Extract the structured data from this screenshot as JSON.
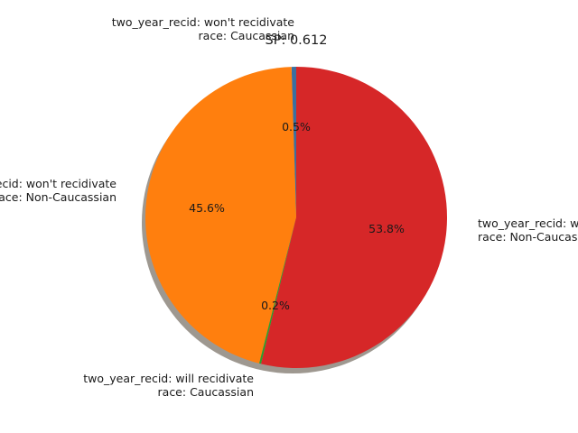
{
  "chart_data": {
    "type": "pie",
    "title": "SP: 0.612",
    "slices": [
      {
        "label_lines": [
          "two_year_recid: won't recidivate",
          "race: Caucassian"
        ],
        "value": 0.5,
        "pct_label": "0.5%",
        "color": "#3b6fa0"
      },
      {
        "label_lines": [
          "two_year_recid: won't recidivate",
          "race: Non-Caucassian"
        ],
        "value": 45.6,
        "pct_label": "45.6%",
        "color": "#ff7f0e"
      },
      {
        "label_lines": [
          "two_year_recid: will recidivate",
          "race: Caucassian"
        ],
        "value": 0.2,
        "pct_label": "0.2%",
        "color": "#2ca02c"
      },
      {
        "label_lines": [
          "two_year_recid: will recidivate",
          "race: Non-Caucassian"
        ],
        "value": 53.8,
        "pct_label": "53.8%",
        "color": "#d62728"
      }
    ],
    "start_angle_deg": 90,
    "direction": "counterclockwise",
    "shadow": true
  }
}
